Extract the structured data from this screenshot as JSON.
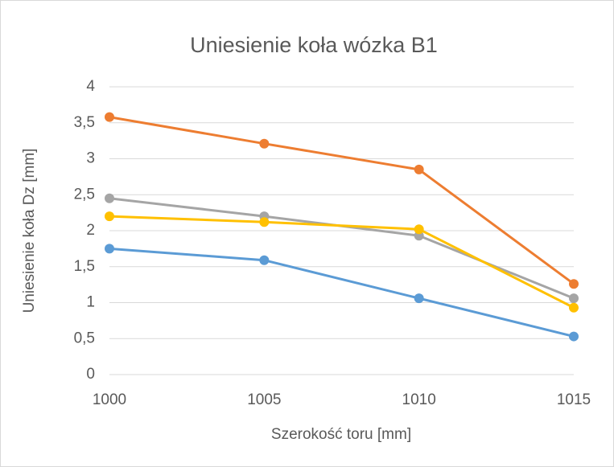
{
  "chart_data": {
    "type": "line",
    "title": "Uniesienie koła wózka B1",
    "x_label": "Szerokość toru [mm]",
    "y_label": "Uniesienie koła Dz [mm]",
    "x": [
      1000,
      1005,
      1010,
      1015
    ],
    "series": [
      {
        "color": "#5b9bd5",
        "values": [
          1.75,
          1.59,
          1.06,
          0.53
        ]
      },
      {
        "color": "#ed7d31",
        "values": [
          3.58,
          3.21,
          2.85,
          1.26
        ]
      },
      {
        "color": "#a5a5a5",
        "values": [
          2.45,
          2.2,
          1.93,
          1.06
        ]
      },
      {
        "color": "#ffc000",
        "values": [
          2.2,
          2.12,
          2.02,
          0.93
        ]
      }
    ],
    "xlim": [
      1000,
      1015
    ],
    "xticks": [
      1000,
      1005,
      1010,
      1015
    ],
    "ylim": [
      0,
      4
    ],
    "yticks": [
      0,
      {
        "value": 0.5,
        "label": "0,5"
      },
      1,
      {
        "value": 1.5,
        "label": "1,5"
      },
      2,
      {
        "value": 2.5,
        "label": "2,5"
      },
      3,
      {
        "value": 3.5,
        "label": "3,5"
      },
      4
    ],
    "grid": true
  }
}
